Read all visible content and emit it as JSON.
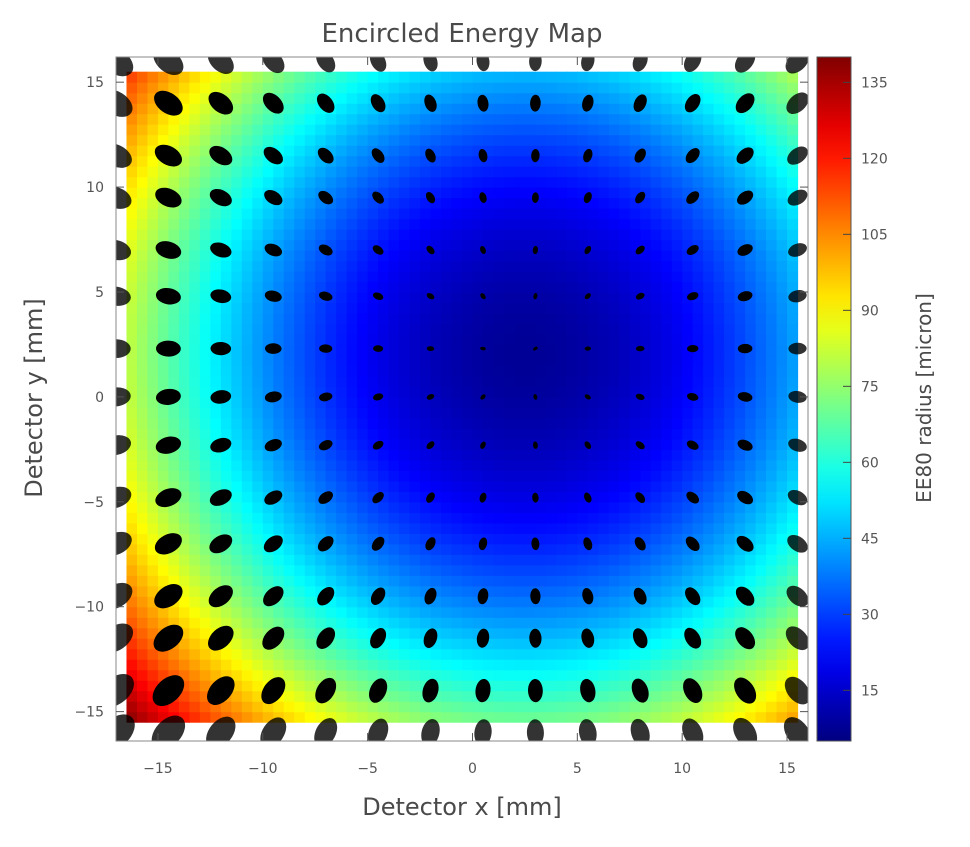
{
  "chart_data": {
    "type": "heatmap",
    "title": "Encircled Energy Map",
    "xlabel": "Detector x [mm]",
    "ylabel": "Detector y [mm]",
    "xlim": [
      -17,
      16
    ],
    "ylim": [
      -16.4,
      16.2
    ],
    "xticks": [
      -15,
      -10,
      -5,
      0,
      5,
      10,
      15
    ],
    "yticks": [
      -15,
      -10,
      -5,
      0,
      5,
      10,
      15
    ],
    "xtick_labels": [
      "−15",
      "−10",
      "−5",
      "0",
      "5",
      "10",
      "15"
    ],
    "ytick_labels": [
      "−15",
      "−10",
      "−5",
      "0",
      "5",
      "10",
      "15"
    ],
    "grid": false,
    "colorbar": {
      "label": "EE80 radius [micron]",
      "range": [
        5,
        140
      ],
      "ticks": [
        15,
        30,
        45,
        60,
        75,
        90,
        105,
        120,
        135
      ],
      "tick_labels": [
        "15",
        "30",
        "45",
        "60",
        "75",
        "90",
        "105",
        "120",
        "135"
      ],
      "colormap": "jet"
    },
    "field_model": {
      "center": [
        2.5,
        2.0
      ],
      "min_value": 8,
      "max_value": 140,
      "extent": [
        -16.5,
        15.5,
        -15.5,
        15.5
      ]
    },
    "spot_grid": {
      "x": [
        -17,
        -14.5,
        -12,
        -9.5,
        -7,
        -4.5,
        -2,
        0.5,
        3,
        5.5,
        8,
        10.5,
        13,
        15.5
      ],
      "y": [
        16,
        14,
        11.5,
        9.5,
        7,
        4.8,
        2.3,
        0,
        -2.3,
        -4.8,
        -7,
        -9.5,
        -11.5,
        -14,
        -16
      ]
    },
    "colors": {
      "spot_fill": "#000000",
      "frame": "#888888",
      "text": "#4a4a4a"
    }
  }
}
